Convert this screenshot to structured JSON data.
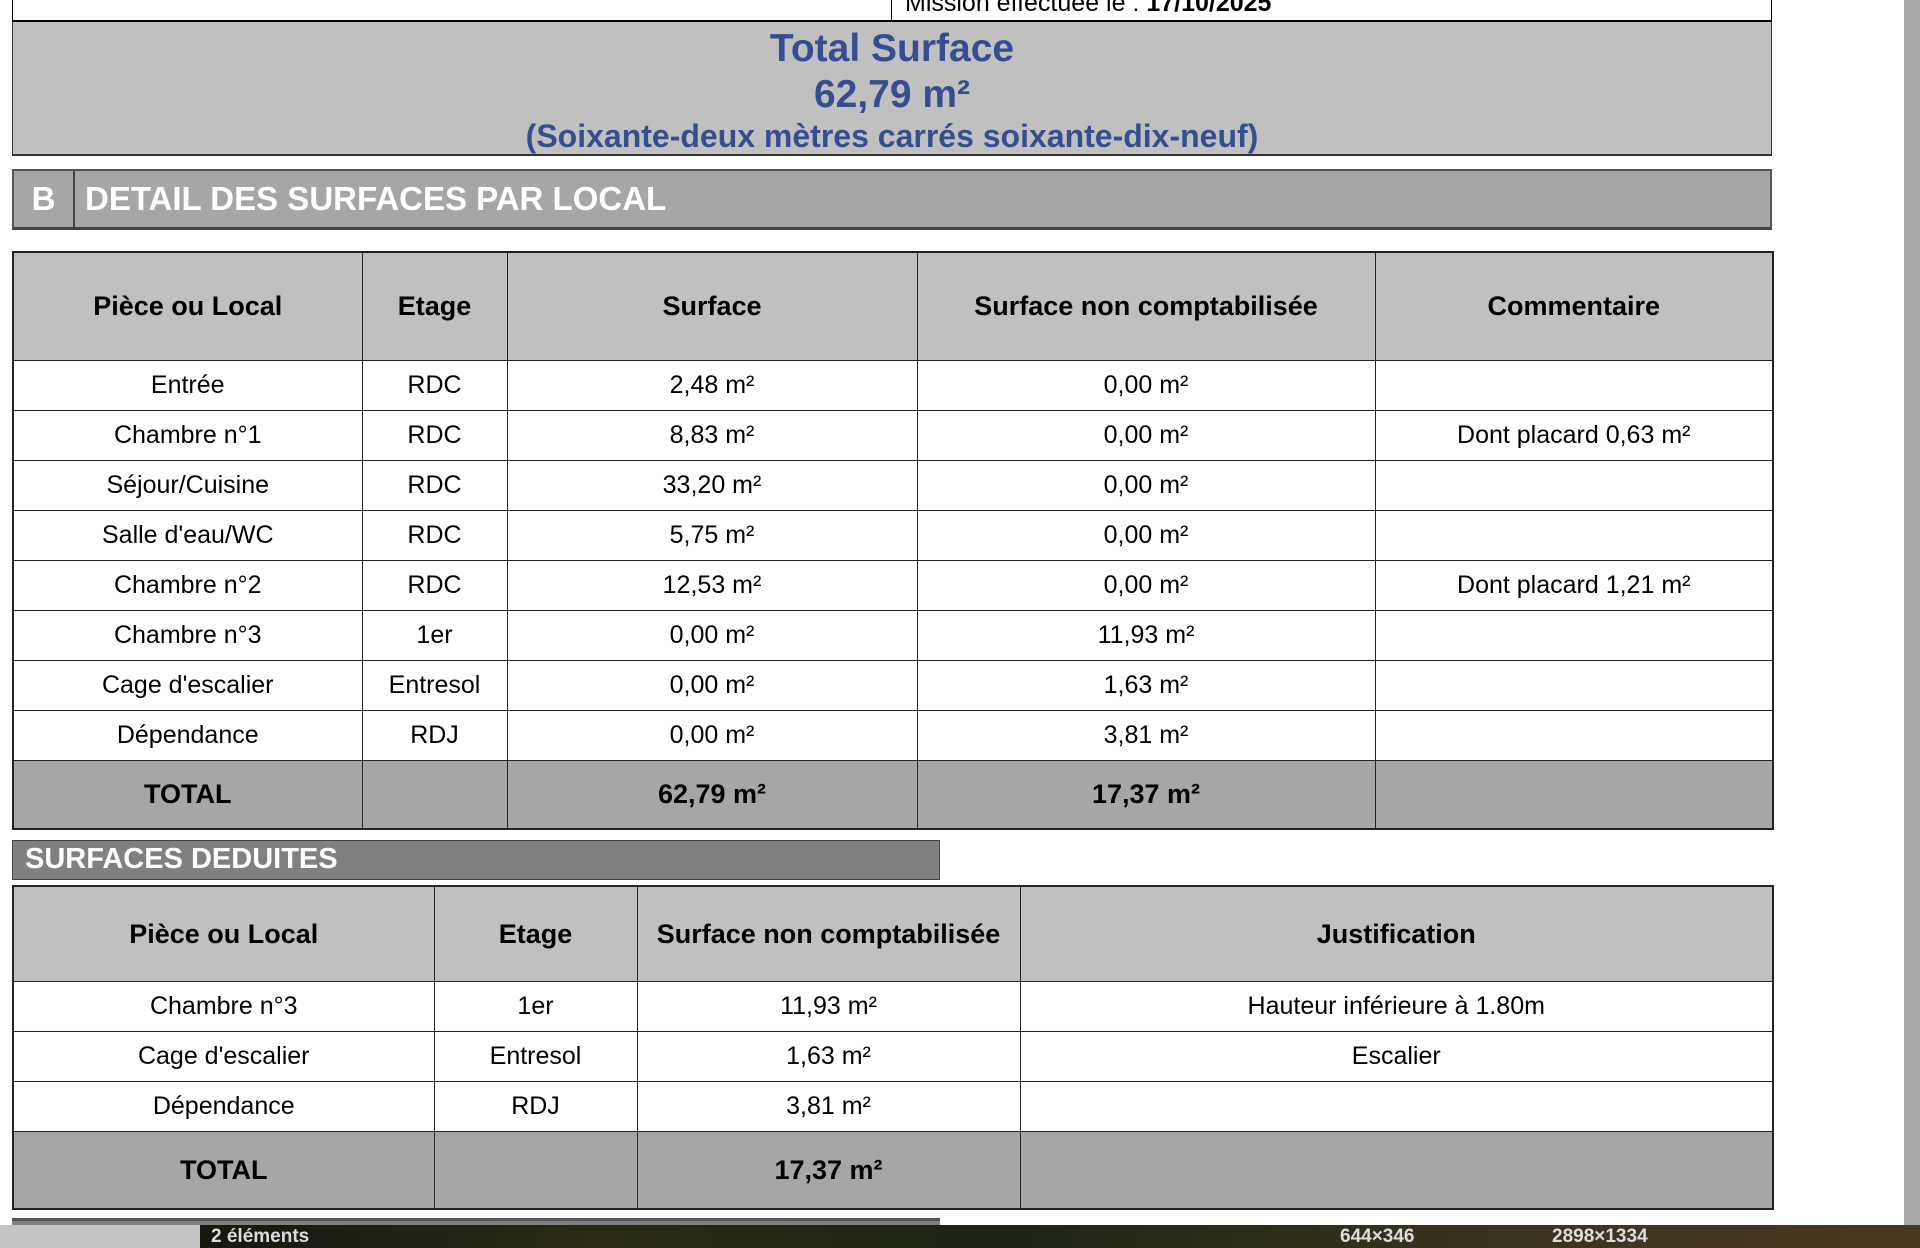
{
  "header": {
    "mission_label": "Mission effectuée le :",
    "mission_date": "17/10/2025"
  },
  "total_surface": {
    "title": "Total Surface",
    "value": "62,79 m²",
    "in_words": "(Soixante-deux mètres carrés soixante-dix-neuf)"
  },
  "section_b": {
    "letter": "B",
    "title": "DETAIL DES SURFACES PAR LOCAL"
  },
  "detail_table": {
    "columns": [
      "Pièce ou Local",
      "Etage",
      "Surface",
      "Surface non comptabilisée",
      "Commentaire"
    ],
    "rows": [
      [
        "Entrée",
        "RDC",
        "2,48 m²",
        "0,00 m²",
        ""
      ],
      [
        "Chambre n°1",
        "RDC",
        "8,83 m²",
        "0,00 m²",
        "Dont placard 0,63 m²"
      ],
      [
        "Séjour/Cuisine",
        "RDC",
        "33,20 m²",
        "0,00 m²",
        ""
      ],
      [
        "Salle d'eau/WC",
        "RDC",
        "5,75 m²",
        "0,00 m²",
        ""
      ],
      [
        "Chambre n°2",
        "RDC",
        "12,53 m²",
        "0,00 m²",
        "Dont placard 1,21 m²"
      ],
      [
        "Chambre n°3",
        "1er",
        "0,00 m²",
        "11,93 m²",
        ""
      ],
      [
        "Cage d'escalier",
        "Entresol",
        "0,00 m²",
        "1,63 m²",
        ""
      ],
      [
        "Dépendance",
        "RDJ",
        "0,00 m²",
        "3,81 m²",
        ""
      ]
    ],
    "total": [
      "TOTAL",
      "",
      "62,79 m²",
      "17,37 m²",
      ""
    ]
  },
  "deduced": {
    "title": "SURFACES DEDUITES",
    "columns": [
      "Pièce ou Local",
      "Etage",
      "Surface non comptabilisée",
      "Justification"
    ],
    "rows": [
      [
        "Chambre n°3",
        "1er",
        "11,93 m²",
        "Hauteur inférieure à 1.80m"
      ],
      [
        "Cage d'escalier",
        "Entresol",
        "1,63 m²",
        "Escalier"
      ],
      [
        "Dépendance",
        "RDJ",
        "3,81 m²",
        ""
      ]
    ],
    "total": [
      "TOTAL",
      "",
      "17,37 m²",
      ""
    ]
  },
  "statusbar": {
    "items_count": "2 éléments",
    "selection_size": "644×346",
    "image_size": "2898×1334"
  },
  "colors": {
    "title_blue": "#354e8f",
    "header_gray": "#c0c0c0",
    "total_gray": "#a6a6a6",
    "bar_gray": "#808080"
  }
}
